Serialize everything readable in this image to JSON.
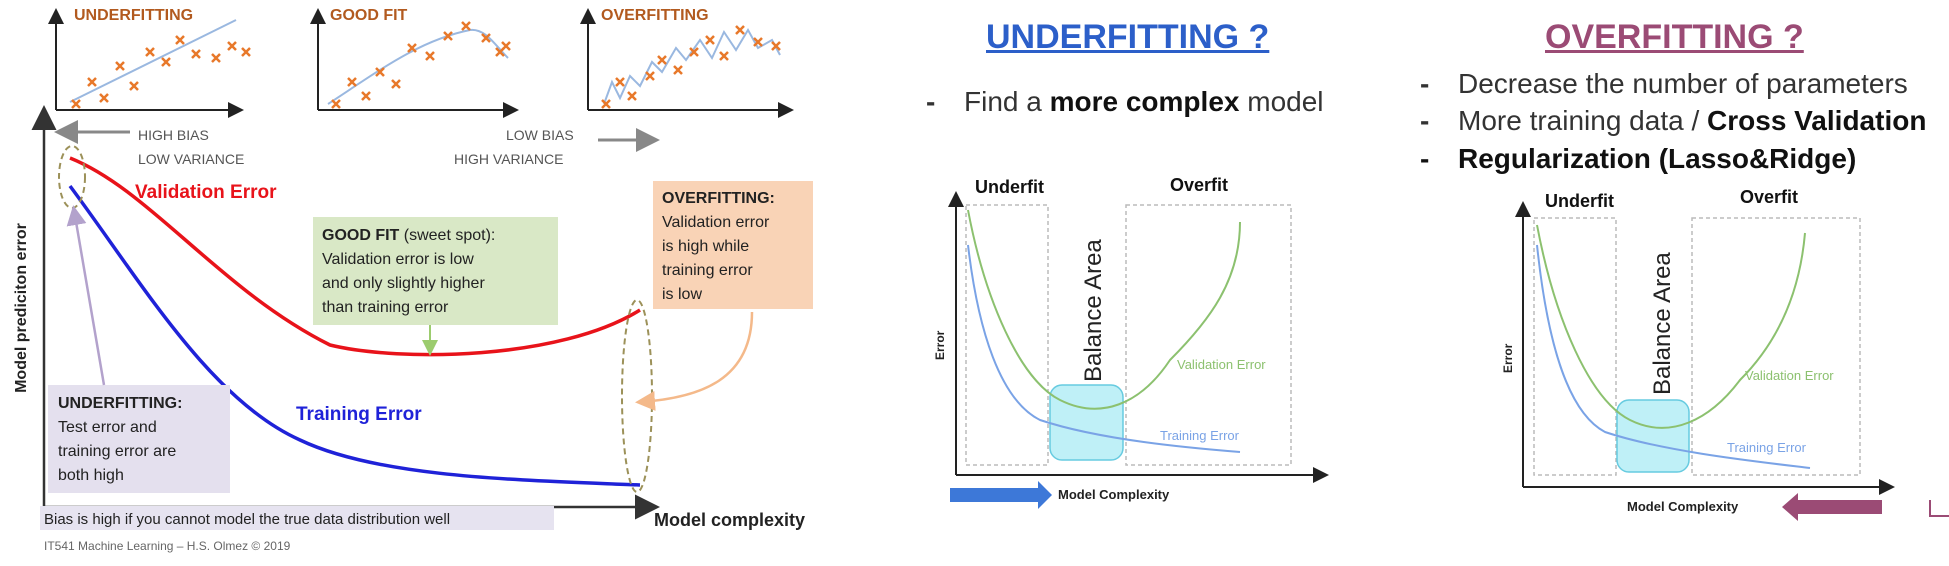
{
  "left": {
    "thumb_titles": [
      "UNDERFITTING",
      "GOOD FIT",
      "OVERFITTING"
    ],
    "high_bias": "HIGH BIAS",
    "low_variance": "LOW VARIANCE",
    "low_bias": "LOW BIAS",
    "high_variance": "HIGH VARIANCE",
    "y_axis_label": "Model prediciton error",
    "x_axis_label": "Model complexity",
    "validation_label": "Validation Error",
    "training_label": "Training Error",
    "goodfit_box": {
      "title": "GOOD FIT",
      "suffix": " (sweet spot):",
      "lines": [
        "Validation error is low",
        "and only slightly higher",
        "than training error"
      ]
    },
    "overfit_box": {
      "title": "OVERFITTING:",
      "lines": [
        "Validation error",
        "is high while",
        "training error",
        "is low"
      ]
    },
    "underfit_box": {
      "title": "UNDERFITTING:",
      "lines": [
        "Test error and",
        "training error are",
        "both high"
      ]
    },
    "bias_note": "Bias is high if you cannot model the true data distribution well",
    "footer": "IT541 Machine Learning – H.S. Olmez © 2019"
  },
  "middle": {
    "heading": "UNDERFITTING ?",
    "bullet_prefix": "Find a ",
    "bullet_bold": "more complex",
    "bullet_suffix": " model",
    "chart": {
      "underfit": "Underfit",
      "overfit": "Overfit",
      "balance": "Balance Area",
      "error": "Error",
      "validation": "Validation Error",
      "training": "Training Error",
      "complexity": "Model Complexity"
    }
  },
  "right": {
    "heading": "OVERFITTING ?",
    "bullet1": "Decrease the number of parameters",
    "bullet2_prefix": "More training data / ",
    "bullet2_bold": "Cross Validation",
    "bullet3": "Regularization (Lasso&Ridge)",
    "chart": {
      "underfit": "Underfit",
      "overfit": "Overfit",
      "balance": "Balance Area",
      "error": "Error",
      "validation": "Validation Error",
      "training": "Training Error",
      "complexity": "Model Complexity"
    }
  },
  "colors": {
    "validation": "#e8131a",
    "training": "#1f22d8",
    "mid_heading": "#2c5fc9",
    "right_heading": "#9b4b75",
    "thumb_title": "#b25a1f",
    "marker": "#e8782a",
    "green_curve": "#8cc16f",
    "blue_curve": "#7aa3e6",
    "balance_fill": "#bff0f7"
  }
}
